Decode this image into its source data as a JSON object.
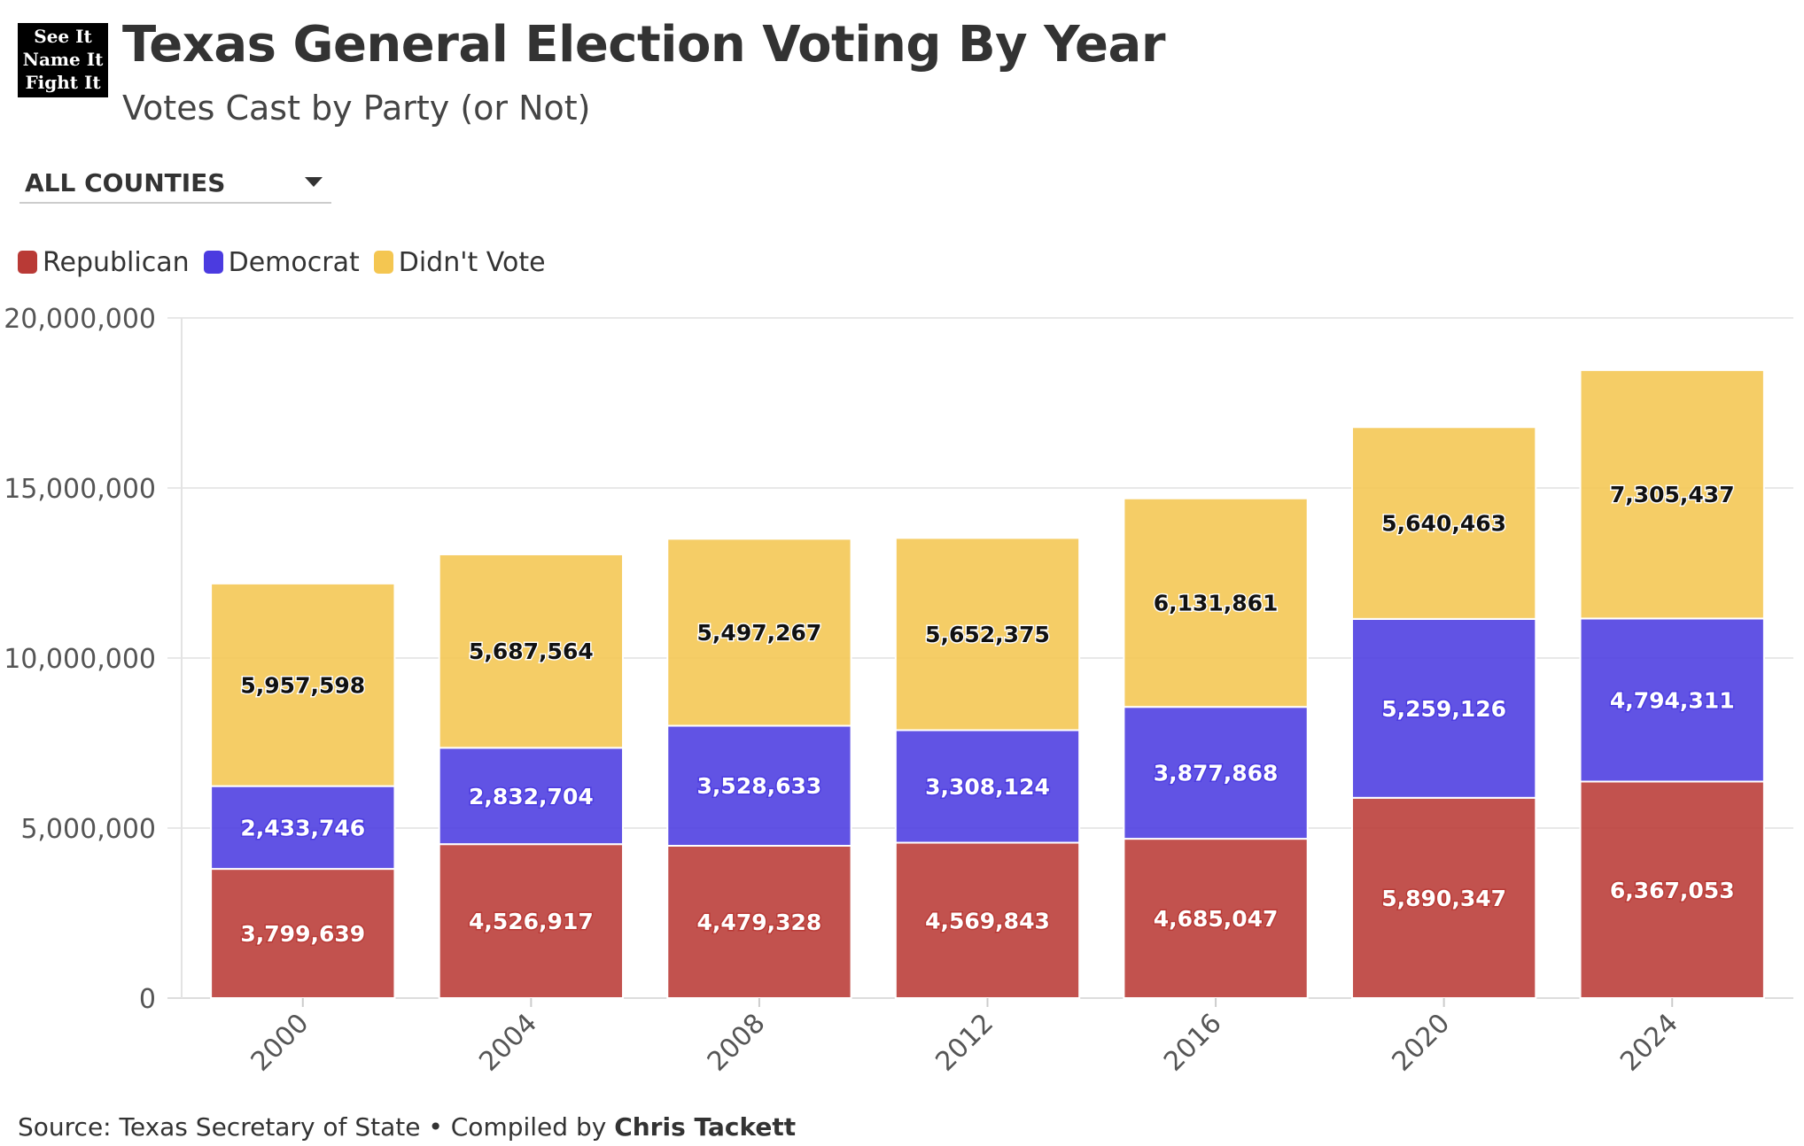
{
  "logo": {
    "lines": [
      "See It",
      "Name It",
      "Fight It"
    ]
  },
  "header": {
    "title": "Texas General Election Voting By Year",
    "subtitle": "Votes Cast by Party (or Not)"
  },
  "filter": {
    "selected": "ALL COUNTIES"
  },
  "legend": [
    {
      "label": "Republican",
      "color": "#b93a36"
    },
    {
      "label": "Democrat",
      "color": "#4b3be0"
    },
    {
      "label": "Didn't Vote",
      "color": "#f4c651"
    }
  ],
  "footer": {
    "source_prefix": "Source: Texas Secretary of State • Compiled by ",
    "author": "Chris Tackett"
  },
  "chart_data": {
    "type": "bar",
    "stacked": true,
    "categories": [
      "2000",
      "2004",
      "2008",
      "2012",
      "2016",
      "2020",
      "2024"
    ],
    "series": [
      {
        "name": "Republican",
        "color": "#b93a36",
        "values": [
          3799639,
          4526917,
          4479328,
          4569843,
          4685047,
          5890347,
          6367053
        ],
        "labels": [
          "3,799,639",
          "4,526,917",
          "4,479,328",
          "4,569,843",
          "4,685,047",
          "5,890,347",
          "6,367,053"
        ]
      },
      {
        "name": "Democrat",
        "color": "#4b3be0",
        "values": [
          2433746,
          2832704,
          3528633,
          3308124,
          3877868,
          5259126,
          4794311
        ],
        "labels": [
          "2,433,746",
          "2,832,704",
          "3,528,633",
          "3,308,124",
          "3,877,868",
          "5,259,126",
          "4,794,311"
        ]
      },
      {
        "name": "Didn't Vote",
        "color": "#f4c651",
        "values": [
          5957598,
          5687564,
          5497267,
          5652375,
          6131861,
          5640463,
          7305437
        ],
        "labels": [
          "5,957,598",
          "5,687,564",
          "5,497,267",
          "5,652,375",
          "6,131,861",
          "5,640,463",
          "7,305,437"
        ]
      }
    ],
    "yticks": [
      0,
      5000000,
      10000000,
      15000000,
      20000000
    ],
    "ytick_labels": [
      "0",
      "5,000,000",
      "10,000,000",
      "15,000,000",
      "20,000,000"
    ],
    "ylim": [
      0,
      20000000
    ],
    "grid": true,
    "legend_position": "top-left"
  }
}
